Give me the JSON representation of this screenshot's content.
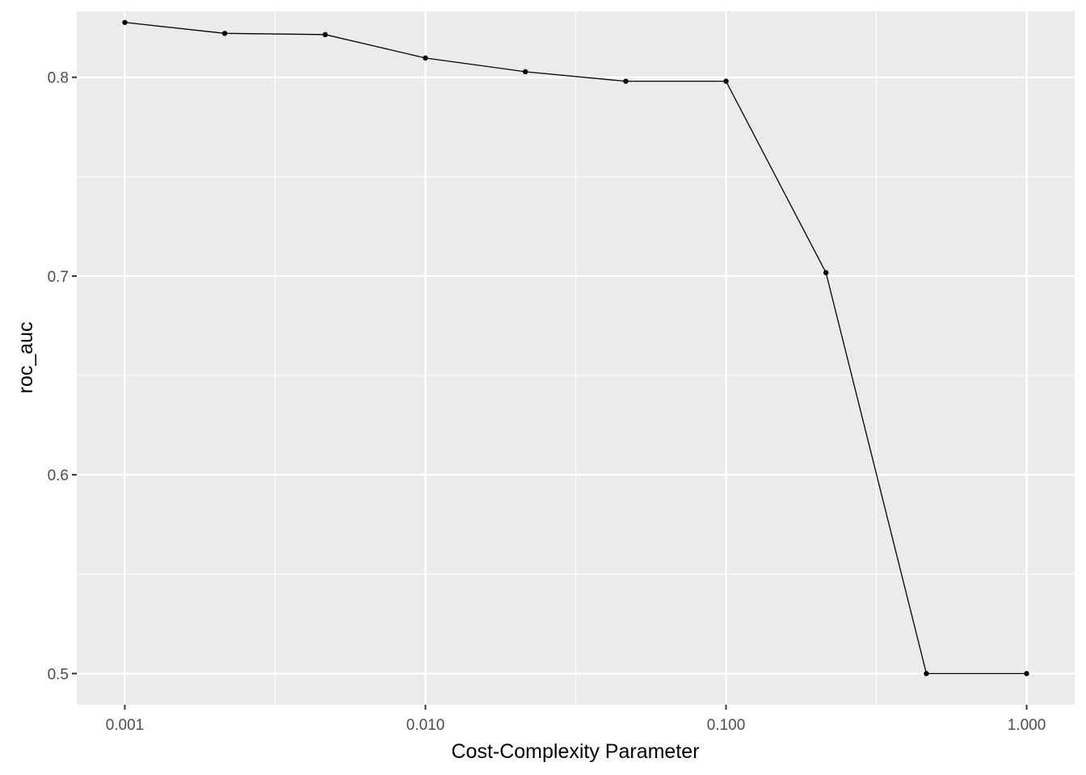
{
  "chart_data": {
    "type": "line",
    "xlabel": "Cost-Complexity Parameter",
    "ylabel": "roc_auc",
    "x_scale": "log10",
    "xlim": [
      0.000692,
      1.445
    ],
    "ylim": [
      0.4843,
      0.8332
    ],
    "x_ticks": [
      0.001,
      0.01,
      0.1,
      1
    ],
    "x_tick_labels": [
      "0.001",
      "0.010",
      "0.100",
      "1.000"
    ],
    "y_ticks": [
      0.5,
      0.6,
      0.7,
      0.8
    ],
    "y_tick_labels": [
      "0.5",
      "0.6",
      "0.7",
      "0.8"
    ],
    "grid": true,
    "background": "#ebebeb",
    "grid_color": "#ffffff",
    "series_color": "#000000",
    "series": [
      {
        "x": [
          0.001,
          0.00215,
          0.00464,
          0.01,
          0.0215,
          0.0464,
          0.1,
          0.215,
          0.464,
          1.0
        ],
        "values": [
          0.8276,
          0.8221,
          0.8215,
          0.8097,
          0.8028,
          0.798,
          0.798,
          0.7017,
          0.5,
          0.5
        ]
      }
    ]
  }
}
